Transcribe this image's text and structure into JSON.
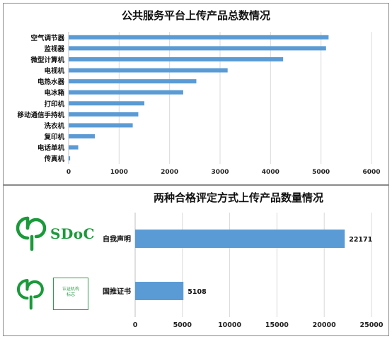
{
  "chart_data": [
    {
      "type": "bar",
      "orientation": "horizontal",
      "title": "公共服务平台上传产品总数情况",
      "categories": [
        "空气调节器",
        "监视器",
        "微型计算机",
        "电视机",
        "电热水器",
        "电冰箱",
        "打印机",
        "移动通信手持机",
        "洗衣机",
        "复印机",
        "电话单机",
        "传真机"
      ],
      "values": [
        5150,
        5100,
        4250,
        3150,
        2530,
        2270,
        1500,
        1380,
        1270,
        520,
        190,
        30
      ],
      "xlim": [
        0,
        6000
      ],
      "xticks": [
        0,
        1000,
        2000,
        3000,
        4000,
        5000,
        6000
      ],
      "grid": "vertical",
      "bar_color": "#5b9bd5"
    },
    {
      "type": "bar",
      "orientation": "horizontal",
      "title": "两种合格评定方式上传产品数量情况",
      "categories": [
        "自我声明",
        "国推证书"
      ],
      "values": [
        22171,
        5108
      ],
      "data_labels": [
        "22171",
        "5108"
      ],
      "xlim": [
        0,
        25000
      ],
      "xticks": [
        0,
        5000,
        10000,
        15000,
        20000,
        25000
      ],
      "grid": "vertical",
      "bar_color": "#5b9bd5"
    }
  ],
  "logos": {
    "sdoc_text": "SDoC",
    "cert_box_line1": "认证机构",
    "cert_box_line2": "标志",
    "brand_green": "#1a9a3a"
  }
}
